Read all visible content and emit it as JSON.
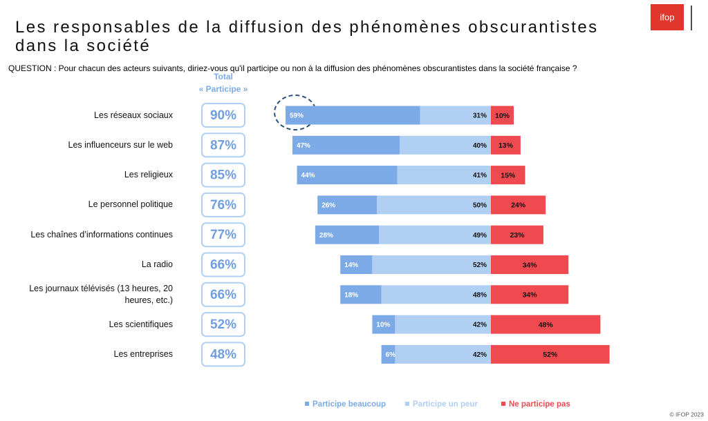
{
  "chart_data": {
    "type": "diverging_bar",
    "title": "Les responsables de la diffusion des phénomènes obscurantistes dans la société",
    "subtitle": "QUESTION : Pour chacun des acteurs suivants, diriez-vous qu'il participe ou non à la diffusion des phénomènes obscurantistes dans la société française ?",
    "total_header": [
      "Total",
      "« Participe »"
    ],
    "categories": [
      "Les réseaux sociaux",
      "Les influenceurs sur le web",
      "Les religieux",
      "Le personnel politique",
      "Les chaînes d’informations continues",
      "La radio",
      "Les journaux télévisés (13 heures, 20 heures, etc.)",
      "Les scientifiques",
      "Les entreprises"
    ],
    "totals": [
      90,
      87,
      85,
      76,
      77,
      66,
      66,
      52,
      48
    ],
    "total_labels": [
      "90%",
      "87%",
      "85%",
      "76%",
      "77%",
      "66%",
      "66%",
      "52%",
      "48%"
    ],
    "series": [
      {
        "name": "Participe beaucoup",
        "color": "#7caae6",
        "values": [
          59,
          47,
          44,
          26,
          28,
          14,
          18,
          10,
          6
        ],
        "value_labels": [
          "59%",
          "47%",
          "44%",
          "26%",
          "28%",
          "14%",
          "18%",
          "10%",
          "6%"
        ]
      },
      {
        "name": "Participe un peur",
        "color": "#b1cff2",
        "values": [
          31,
          40,
          41,
          50,
          49,
          52,
          48,
          42,
          42
        ],
        "value_labels": [
          "31%",
          "40%",
          "41%",
          "50%",
          "49%",
          "52%",
          "48%",
          "42%",
          "42%"
        ]
      },
      {
        "name": "Ne participe pas",
        "color": "#ef4a50",
        "values": [
          10,
          13,
          15,
          24,
          23,
          34,
          34,
          48,
          52
        ],
        "value_labels": [
          "10%",
          "13%",
          "15%",
          "24%",
          "23%",
          "34%",
          "34%",
          "48%",
          "52%"
        ]
      }
    ],
    "logo": "ifop",
    "footer": "© IFOP 2023"
  }
}
